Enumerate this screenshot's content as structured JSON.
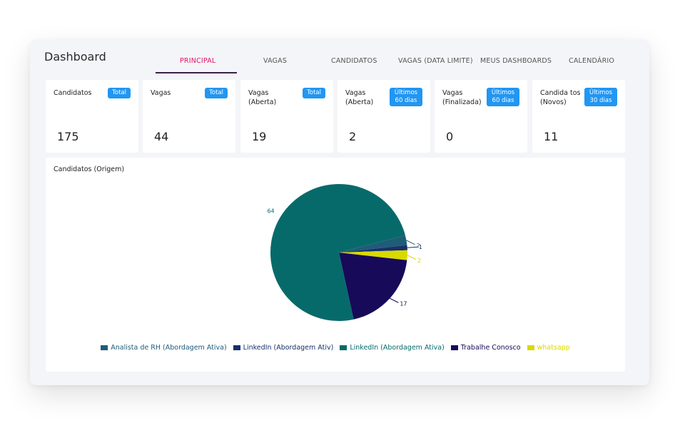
{
  "header": {
    "title": "Dashboard"
  },
  "tabs": [
    {
      "label": "PRINCIPAL",
      "active": true
    },
    {
      "label": "VAGAS",
      "active": false
    },
    {
      "label": "CANDIDATOS",
      "active": false
    },
    {
      "label": "VAGAS (DATA LIMITE)",
      "active": false
    },
    {
      "label": "MEUS DASHBOARDS",
      "active": false
    },
    {
      "label": "CALENDÁRIO",
      "active": false
    }
  ],
  "cards": [
    {
      "label": "Candidatos",
      "badge": "Total",
      "value": "175"
    },
    {
      "label": "Vagas",
      "badge": "Total",
      "value": "44"
    },
    {
      "label": "Vagas (Aberta)",
      "badge": "Total",
      "value": "19"
    },
    {
      "label": "Vagas (Aberta)",
      "badge": "Últimos 60 dias",
      "value": "2"
    },
    {
      "label": "Vagas (Finalizada)",
      "badge": "Últimos 60 dias",
      "value": "0"
    },
    {
      "label": "Candida tos (Novos)",
      "badge": "Últimos 30 dias",
      "value": "11"
    }
  ],
  "colors": {
    "accent": "#e0156b",
    "badge": "#2196f3"
  },
  "chart_data": {
    "type": "pie",
    "title": "Candidatos (Origem)",
    "series": [
      {
        "name": "Analista de RH (Abordagem Ativa)",
        "value": 2,
        "color": "#1f5c78"
      },
      {
        "name": "LinkedIn (Abordagem Ativ)",
        "value": 1,
        "color": "#17306b"
      },
      {
        "name": "LinkedIn (Abordagem Ativa)",
        "value": 64,
        "color": "#076a6a"
      },
      {
        "name": "Trabalhe Conosco",
        "value": 17,
        "color": "#170a59"
      },
      {
        "name": "whatsapp",
        "value": 2,
        "color": "#d9d900"
      }
    ],
    "slice_labels": [
      {
        "text": "2",
        "value": 2
      },
      {
        "text": "1",
        "value": 1
      },
      {
        "text": "64",
        "value": 64
      },
      {
        "text": "17",
        "value": 17
      },
      {
        "text": "2",
        "value": 2
      }
    ],
    "legend_position": "bottom"
  }
}
